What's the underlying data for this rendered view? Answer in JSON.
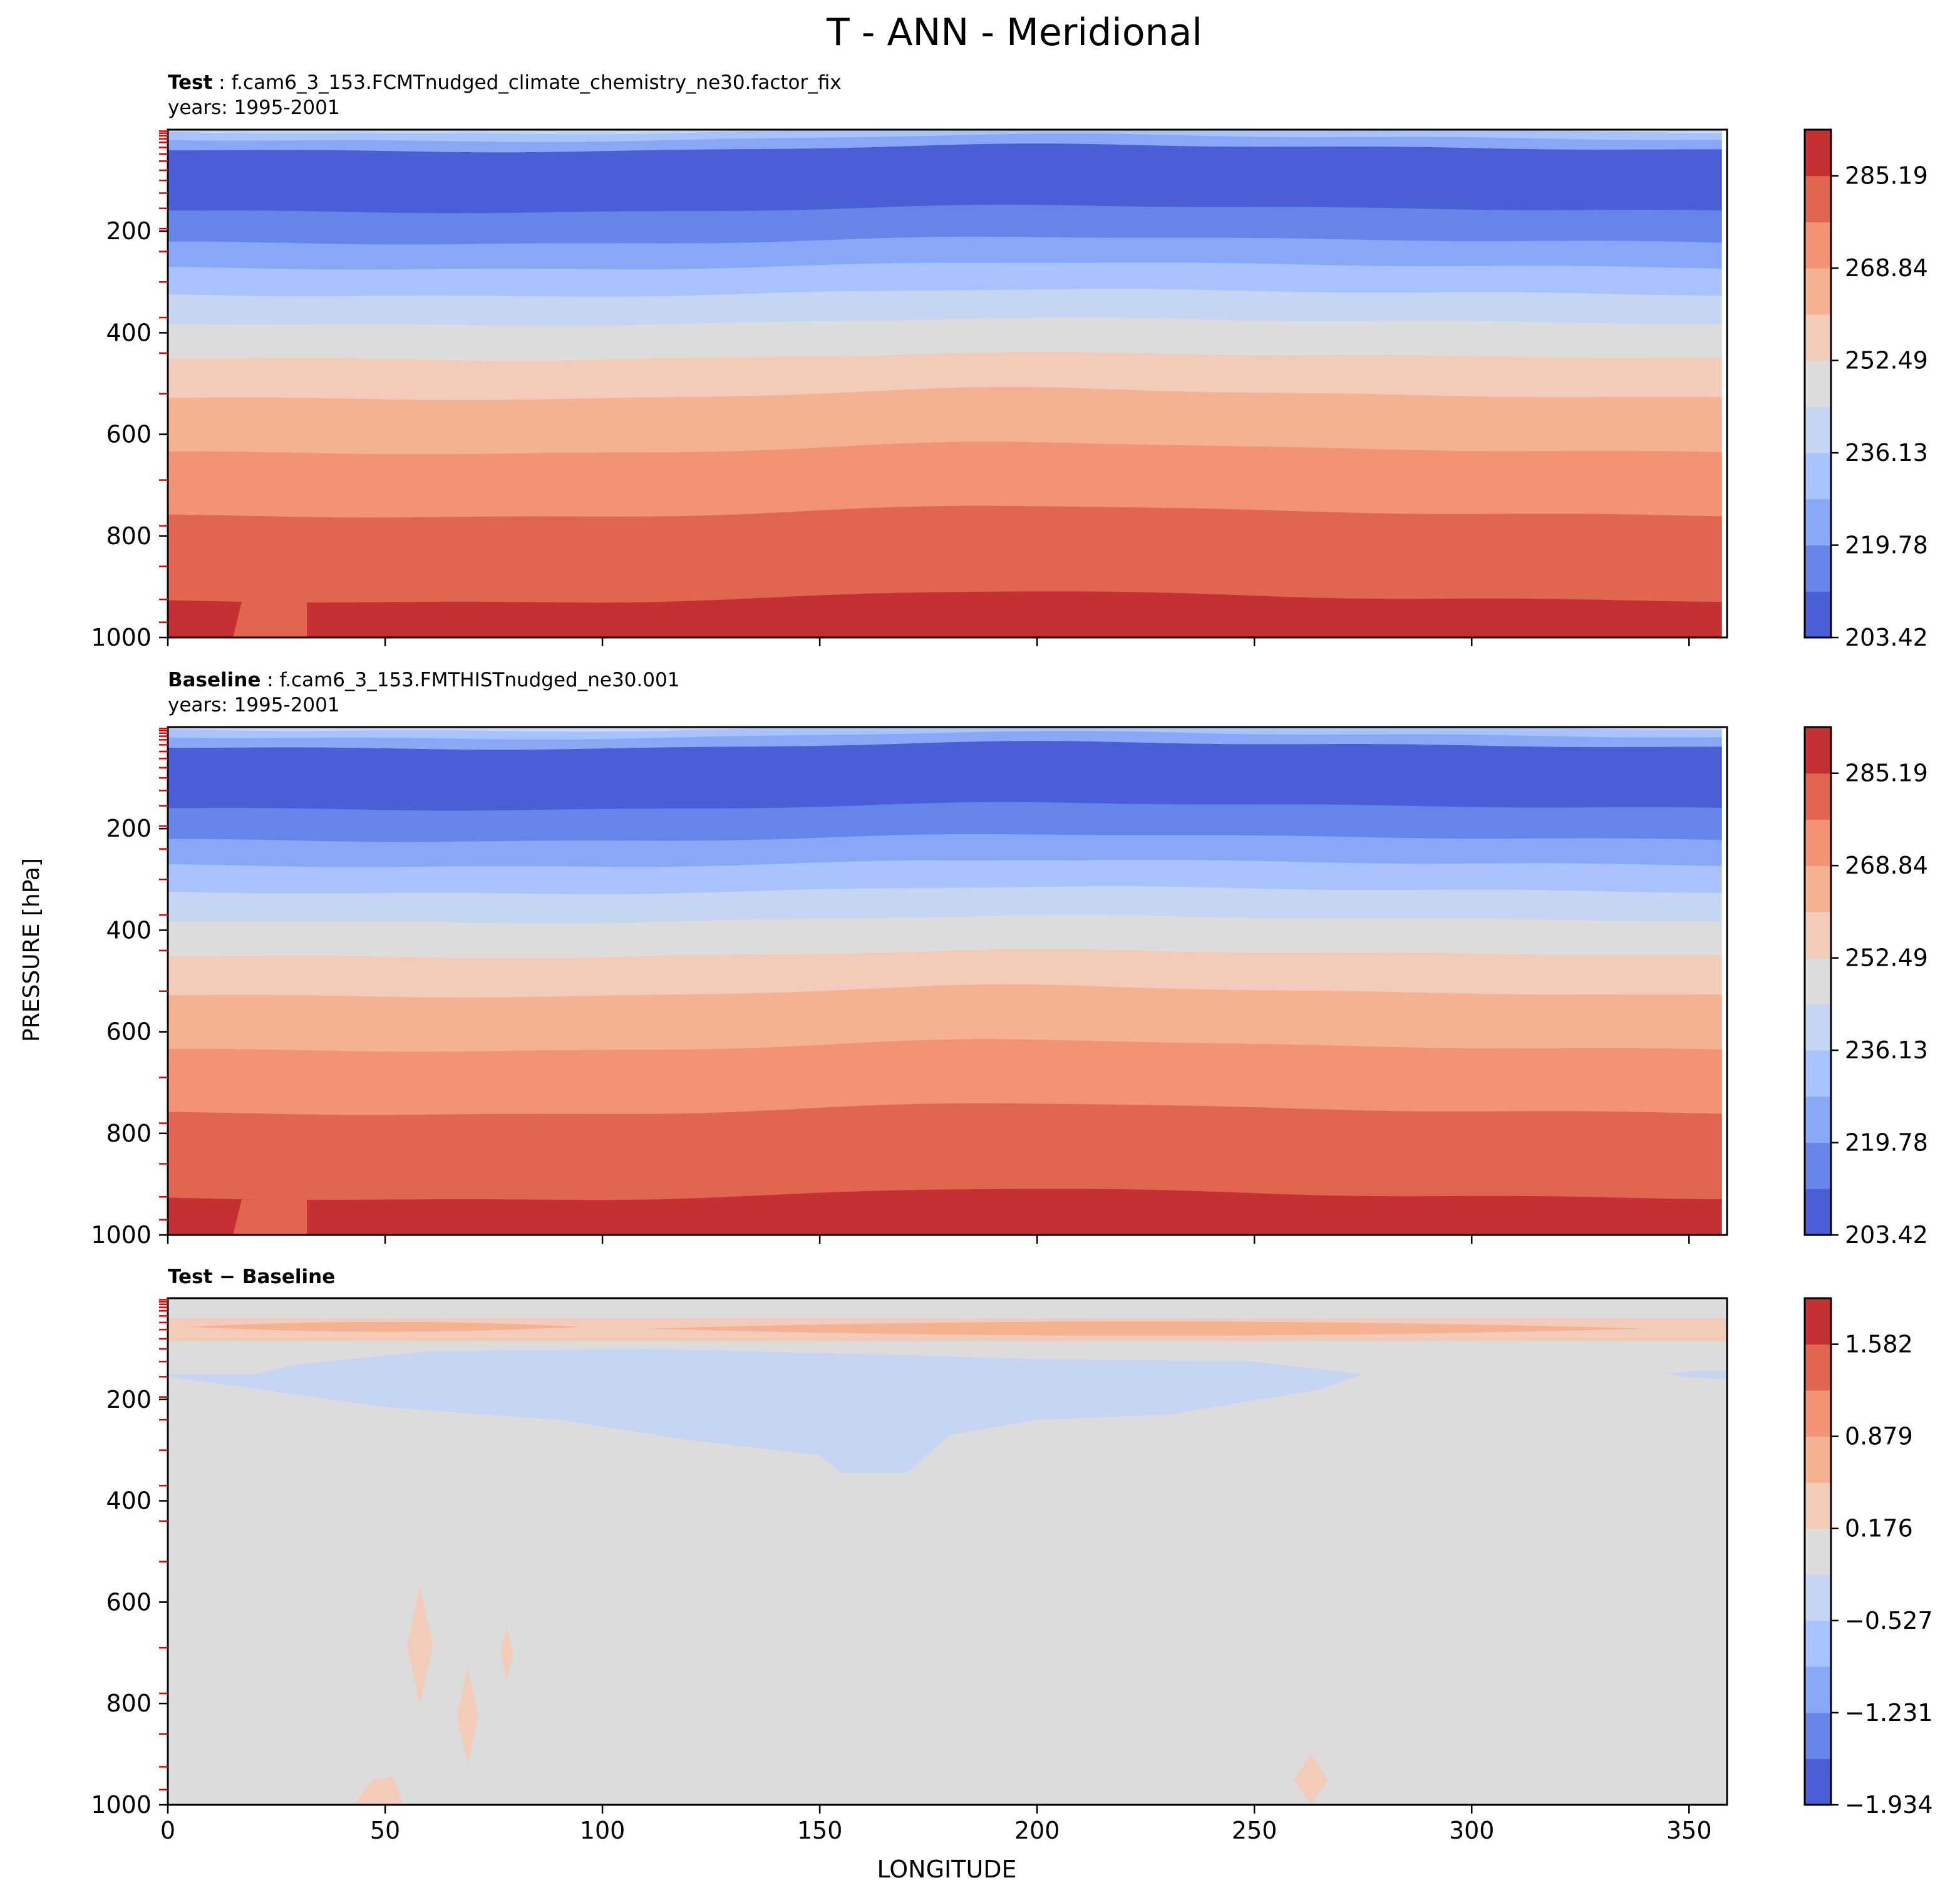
{
  "figure": {
    "title": "T - ANN - Meridional",
    "ylabel": "PRESSURE [hPa]",
    "xlabel": "LONGITUDE"
  },
  "chart_data": [
    {
      "type": "heatmap",
      "panel": "test",
      "label_bold": "Test",
      "label_sep": " : ",
      "case_name": "f.cam6_3_153.FCMTnudged_climate_chemistry_ne30.factor_fix",
      "years": "years: 1995-2001",
      "x_ticks": [
        "0",
        "50",
        "100",
        "150",
        "200",
        "250",
        "300",
        "350"
      ],
      "x_tick_values": [
        0,
        50,
        100,
        150,
        200,
        250,
        300,
        350
      ],
      "xlim": [
        0,
        358.75
      ],
      "y_ticks": [
        "200",
        "400",
        "600",
        "800",
        "1000"
      ],
      "y_tick_values": [
        200,
        400,
        600,
        800,
        1000
      ],
      "ylim": [
        0,
        1000
      ],
      "y_inverted": true,
      "colorbar_ticks": [
        "285.19",
        "268.84",
        "252.49",
        "236.13",
        "219.78",
        "203.42"
      ],
      "colormap": "coolwarm",
      "levels": 11,
      "band_boundaries_hpa": [
        5,
        20,
        40,
        160,
        222,
        272,
        325,
        382,
        450,
        528,
        635,
        760,
        928
      ],
      "surface_cut_hpa": 1000
    },
    {
      "type": "heatmap",
      "panel": "baseline",
      "label_bold": "Baseline",
      "label_sep": " : ",
      "case_name": "f.cam6_3_153.FMTHISTnudged_ne30.001",
      "years": "years: 1995-2001",
      "x_ticks": [
        "0",
        "50",
        "100",
        "150",
        "200",
        "250",
        "300",
        "350"
      ],
      "x_tick_values": [
        0,
        50,
        100,
        150,
        200,
        250,
        300,
        350
      ],
      "xlim": [
        0,
        358.75
      ],
      "y_ticks": [
        "200",
        "400",
        "600",
        "800",
        "1000"
      ],
      "y_tick_values": [
        200,
        400,
        600,
        800,
        1000
      ],
      "ylim": [
        0,
        1000
      ],
      "y_inverted": true,
      "colorbar_ticks": [
        "285.19",
        "268.84",
        "252.49",
        "236.13",
        "219.78",
        "203.42"
      ],
      "colormap": "coolwarm",
      "levels": 11,
      "band_boundaries_hpa": [
        5,
        20,
        40,
        160,
        222,
        272,
        325,
        382,
        450,
        528,
        635,
        760,
        928
      ]
    },
    {
      "type": "heatmap",
      "panel": "difference",
      "title": "Test − Baseline",
      "x_ticks": [
        "0",
        "50",
        "100",
        "150",
        "200",
        "250",
        "300",
        "350"
      ],
      "x_tick_values": [
        0,
        50,
        100,
        150,
        200,
        250,
        300,
        350
      ],
      "xlim": [
        0,
        358.75
      ],
      "y_ticks": [
        "200",
        "400",
        "600",
        "800",
        "1000"
      ],
      "y_tick_values": [
        200,
        400,
        600,
        800,
        1000
      ],
      "ylim": [
        0,
        1000
      ],
      "y_inverted": true,
      "colorbar_ticks": [
        "1.582",
        "0.879",
        "0.176",
        "−0.527",
        "−1.231",
        "−1.934"
      ],
      "colormap": "coolwarm",
      "levels": 11,
      "background_value_range": [
        -0.176,
        0.176
      ],
      "warm_layer_hpa": [
        40,
        85
      ],
      "cool_region_hpa": [
        100,
        350
      ],
      "cool_region_lon": [
        0,
        275
      ]
    }
  ],
  "colors": {
    "c0": "#4a5fd5",
    "c1": "#6685e8",
    "c2": "#88a8f7",
    "c3": "#a8c3fb",
    "c4": "#c5d5f3",
    "c5": "#dddcdc",
    "c6": "#f2cbb9",
    "c7": "#f5b293",
    "c8": "#f19374",
    "c9": "#e06650",
    "c10": "#c53033",
    "diff_bg": "#dddcdc",
    "diff_warm": "#f2cbb9",
    "diff_warm2": "#f5b293",
    "diff_cool": "#c5d5f3",
    "tick_red": "#e00000"
  }
}
